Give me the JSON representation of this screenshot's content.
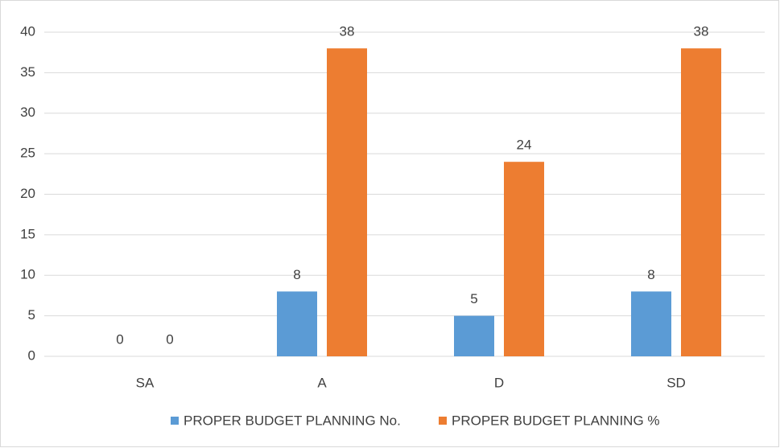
{
  "chart_data": {
    "type": "bar",
    "categories": [
      "SA",
      "A",
      "D",
      "SD"
    ],
    "series": [
      {
        "name": "PROPER BUDGET PLANNING No.",
        "color": "#5b9bd5",
        "values": [
          0,
          8,
          5,
          8
        ]
      },
      {
        "name": "PROPER BUDGET PLANNING %",
        "color": "#ed7d31",
        "values": [
          0,
          38,
          24,
          38
        ]
      }
    ],
    "ylim": [
      0,
      40
    ],
    "yticks": [
      0,
      5,
      10,
      15,
      20,
      25,
      30,
      35,
      40
    ],
    "grid": true,
    "legend": "bottom"
  }
}
